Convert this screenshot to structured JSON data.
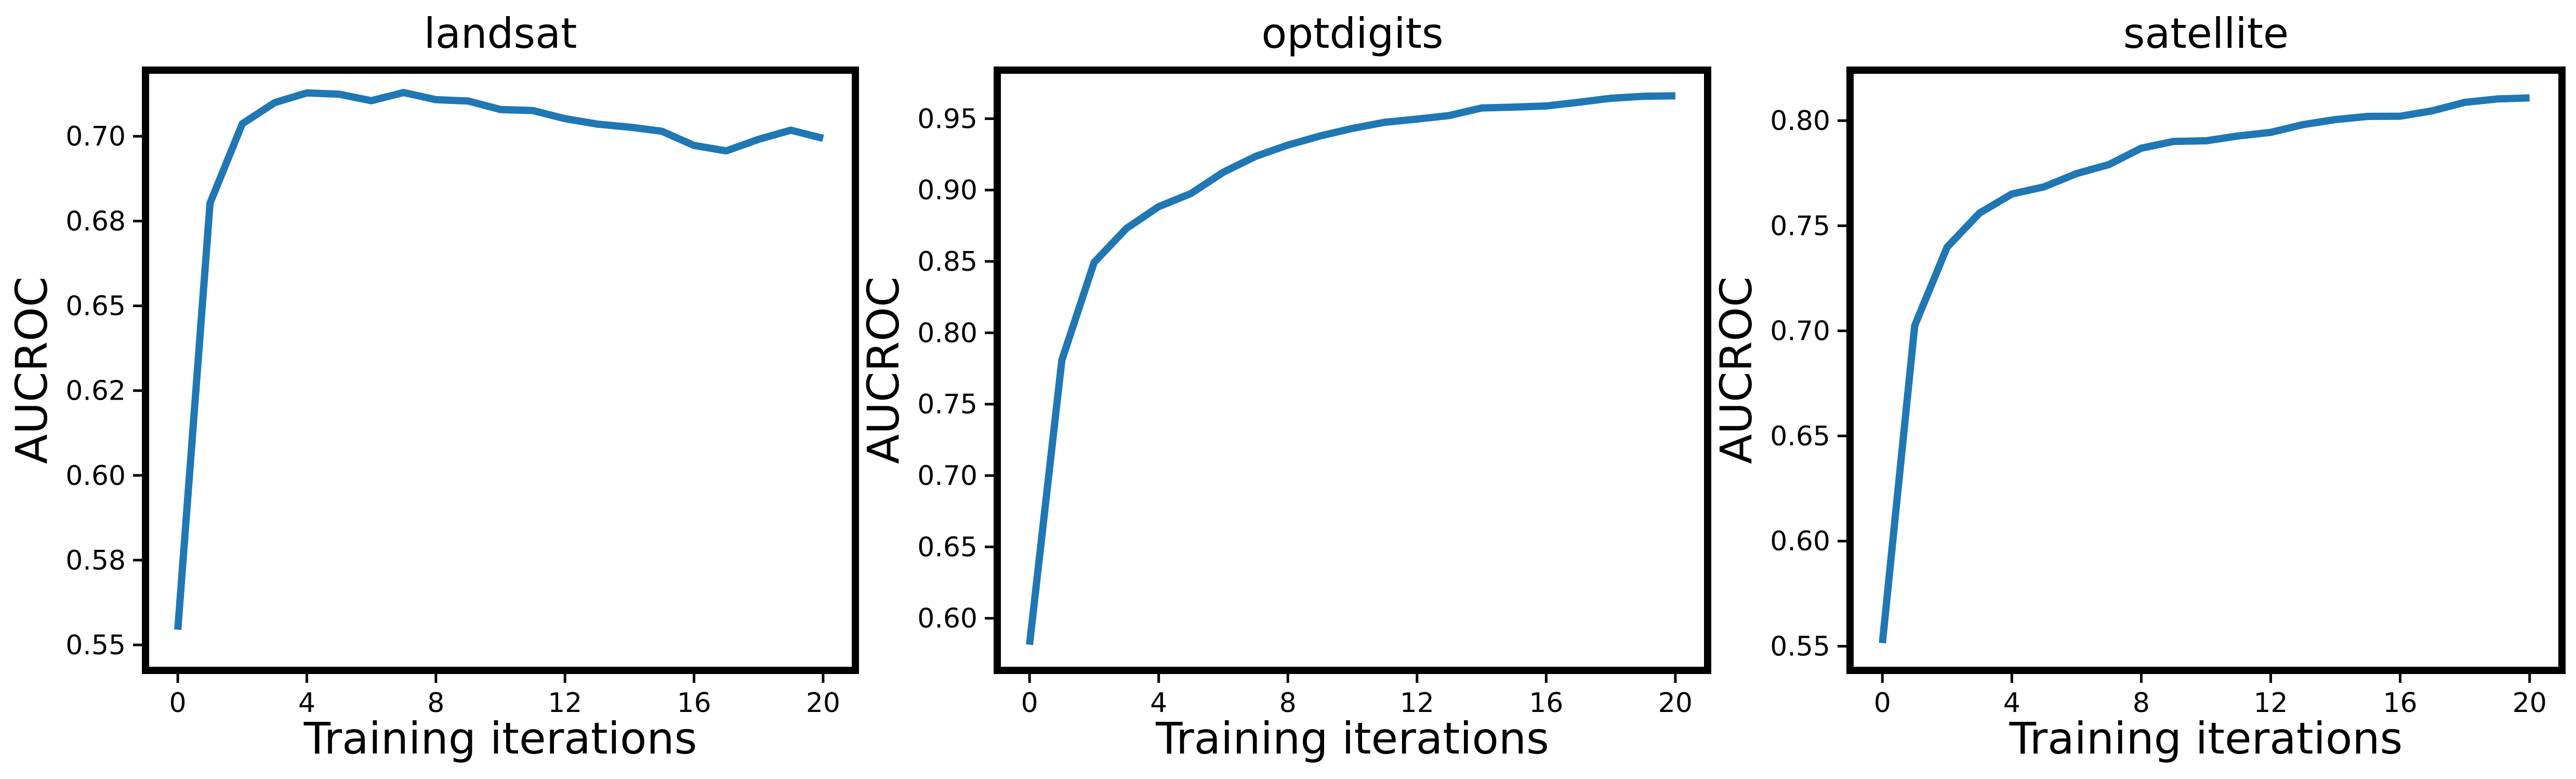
{
  "chart_data": [
    {
      "type": "line",
      "title": "landsat",
      "xlabel": "Training iterations",
      "ylabel": "AUCROC",
      "xlim": [
        -1.0,
        21.0
      ],
      "ylim": [
        0.5425,
        0.7195
      ],
      "xticks": [
        0,
        4,
        8,
        12,
        16,
        20
      ],
      "xtick_labels": [
        "0",
        "4",
        "8",
        "12",
        "16",
        "20"
      ],
      "yticks": [
        0.55,
        0.575,
        0.6,
        0.625,
        0.65,
        0.675,
        0.7
      ],
      "ytick_labels": [
        "0.55",
        "0.58",
        "0.60",
        "0.62",
        "0.65",
        "0.68",
        "0.70"
      ],
      "grid": false,
      "series": [
        {
          "color": "#1f77b4",
          "x": [
            0,
            1,
            2,
            3,
            4,
            5,
            6,
            7,
            8,
            9,
            10,
            11,
            12,
            13,
            14,
            15,
            16,
            17,
            18,
            19,
            20
          ],
          "values": [
            0.5545,
            0.6803,
            0.7037,
            0.7099,
            0.7128,
            0.7124,
            0.7105,
            0.7129,
            0.7108,
            0.7104,
            0.7079,
            0.7076,
            0.7052,
            0.7036,
            0.7027,
            0.7015,
            0.6973,
            0.6957,
            0.6991,
            0.7018,
            0.6994
          ]
        }
      ]
    },
    {
      "type": "line",
      "title": "optdigits",
      "xlabel": "Training iterations",
      "ylabel": "AUCROC",
      "xlim": [
        -1.0,
        21.0
      ],
      "ylim": [
        0.5635,
        0.984
      ],
      "xticks": [
        0,
        4,
        8,
        12,
        16,
        20
      ],
      "xtick_labels": [
        "0",
        "4",
        "8",
        "12",
        "16",
        "20"
      ],
      "yticks": [
        0.6,
        0.65,
        0.7,
        0.75,
        0.8,
        0.85,
        0.9,
        0.95
      ],
      "ytick_labels": [
        "0.60",
        "0.65",
        "0.70",
        "0.75",
        "0.80",
        "0.85",
        "0.90",
        "0.95"
      ],
      "grid": false,
      "series": [
        {
          "color": "#1f77b4",
          "x": [
            0,
            1,
            2,
            3,
            4,
            5,
            6,
            7,
            8,
            9,
            10,
            11,
            12,
            13,
            14,
            15,
            16,
            17,
            18,
            19,
            20
          ],
          "values": [
            0.5815,
            0.7808,
            0.8493,
            0.8731,
            0.8884,
            0.8976,
            0.9125,
            0.9236,
            0.9315,
            0.9379,
            0.9432,
            0.9475,
            0.9497,
            0.9522,
            0.9575,
            0.9581,
            0.9589,
            0.9615,
            0.9643,
            0.9657,
            0.966
          ]
        }
      ]
    },
    {
      "type": "line",
      "title": "satellite",
      "xlabel": "Training iterations",
      "ylabel": "AUCROC",
      "xlim": [
        -1.0,
        21.0
      ],
      "ylim": [
        0.5385,
        0.824
      ],
      "xticks": [
        0,
        4,
        8,
        12,
        16,
        20
      ],
      "xtick_labels": [
        "0",
        "4",
        "8",
        "12",
        "16",
        "20"
      ],
      "yticks": [
        0.55,
        0.6,
        0.65,
        0.7,
        0.75,
        0.8
      ],
      "ytick_labels": [
        "0.55",
        "0.60",
        "0.65",
        "0.70",
        "0.75",
        "0.80"
      ],
      "grid": false,
      "series": [
        {
          "color": "#1f77b4",
          "x": [
            0,
            1,
            2,
            3,
            4,
            5,
            6,
            7,
            8,
            9,
            10,
            11,
            12,
            13,
            14,
            15,
            16,
            17,
            18,
            19,
            20
          ],
          "values": [
            0.5515,
            0.7025,
            0.7398,
            0.756,
            0.7651,
            0.7685,
            0.7748,
            0.7791,
            0.7869,
            0.7901,
            0.7904,
            0.7927,
            0.7944,
            0.7981,
            0.8005,
            0.802,
            0.8021,
            0.8047,
            0.8087,
            0.8103,
            0.8108
          ]
        }
      ]
    }
  ]
}
